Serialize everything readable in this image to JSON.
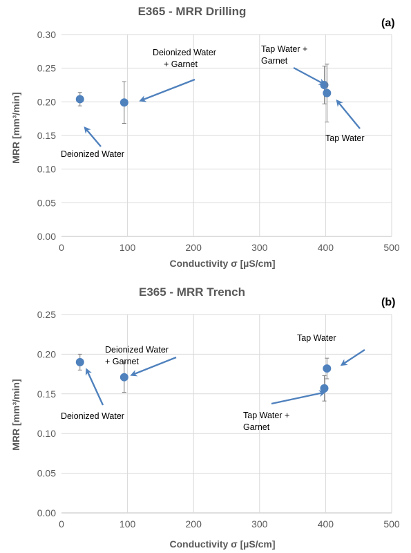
{
  "colors": {
    "marker": "#4f81bd",
    "arrow": "#4f81bd",
    "grid": "#d9d9d9",
    "text": "#595959"
  },
  "chart_data": [
    {
      "type": "scatter",
      "panel": "(a)",
      "title": "E365 - MRR Drilling",
      "xlabel": "Conductivity σ [µS/cm]",
      "ylabel": "MRR [mm³/min]",
      "xlim": [
        0,
        500
      ],
      "ylim": [
        0,
        0.3
      ],
      "x_ticks": [
        "0",
        "100",
        "200",
        "300",
        "400",
        "500"
      ],
      "y_ticks": [
        "0.00",
        "0.05",
        "0.10",
        "0.15",
        "0.20",
        "0.25",
        "0.30"
      ],
      "grid": true,
      "points": [
        {
          "label": "Deionized Water",
          "x": 28,
          "y": 0.204,
          "err": 0.01
        },
        {
          "label": "Deionized Water + Garnet",
          "x": 95,
          "y": 0.199,
          "err": 0.031
        },
        {
          "label": "Tap Water + Garnet",
          "x": 398,
          "y": 0.225,
          "err": 0.028
        },
        {
          "label": "Tap Water",
          "x": 402,
          "y": 0.213,
          "err": 0.043
        }
      ],
      "annotations": [
        {
          "lines": [
            "Deionized Water"
          ]
        },
        {
          "lines": [
            "Deionized Water",
            "+ Garnet"
          ]
        },
        {
          "lines": [
            "Tap Water +",
            "Garnet"
          ]
        },
        {
          "lines": [
            "Tap Water"
          ]
        }
      ]
    },
    {
      "type": "scatter",
      "panel": "(b)",
      "title": "E365 - MRR Trench",
      "xlabel": "Conductivity σ [µS/cm]",
      "ylabel": "MRR [mm³/min]",
      "xlim": [
        0,
        500
      ],
      "ylim": [
        0,
        0.25
      ],
      "x_ticks": [
        "0",
        "100",
        "200",
        "300",
        "400",
        "500"
      ],
      "y_ticks": [
        "0.00",
        "0.05",
        "0.10",
        "0.15",
        "0.20",
        "0.25"
      ],
      "grid": true,
      "points": [
        {
          "label": "Deionized Water",
          "x": 28,
          "y": 0.19,
          "err": 0.01
        },
        {
          "label": "Deionized Water + Garnet",
          "x": 95,
          "y": 0.171,
          "err": 0.019
        },
        {
          "label": "Tap Water + Garnet",
          "x": 398,
          "y": 0.157,
          "err": 0.016
        },
        {
          "label": "Tap Water",
          "x": 402,
          "y": 0.182,
          "err": 0.013
        }
      ],
      "annotations": [
        {
          "lines": [
            "Deionized Water"
          ]
        },
        {
          "lines": [
            "Deionized Water",
            "+ Garnet"
          ]
        },
        {
          "lines": [
            "Tap Water +",
            "Garnet"
          ]
        },
        {
          "lines": [
            "Tap Water"
          ]
        }
      ]
    }
  ]
}
